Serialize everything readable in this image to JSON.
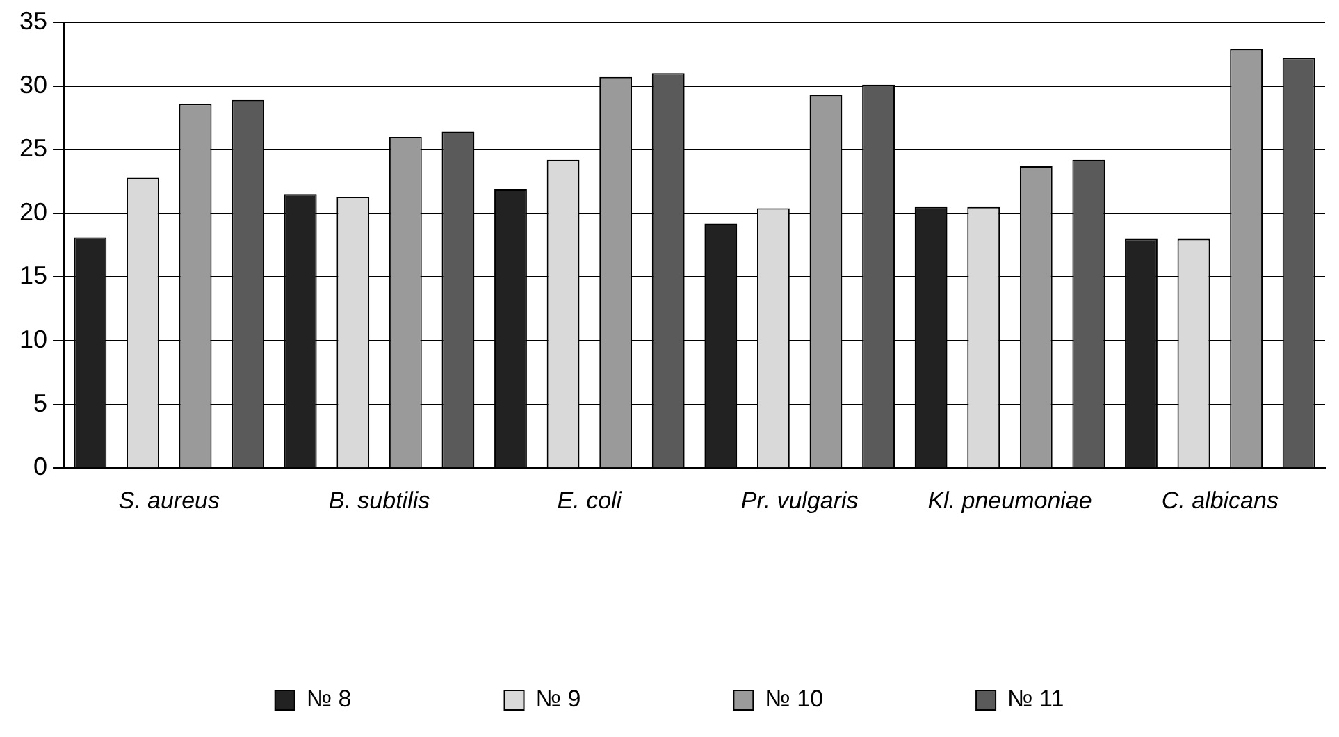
{
  "chart_data": {
    "type": "bar",
    "categories": [
      "S. aureus",
      "B. subtilis",
      "E. coli",
      "Pr. vulgaris",
      "Kl. pneumoniae",
      "C. albicans"
    ],
    "series": [
      {
        "name": "№ 8",
        "color": "#222222",
        "values": [
          18.1,
          21.5,
          21.9,
          19.2,
          20.5,
          18.0
        ]
      },
      {
        "name": "№ 9",
        "color": "#d9d9d9",
        "values": [
          22.8,
          21.3,
          24.2,
          20.4,
          20.5,
          18.0
        ]
      },
      {
        "name": "№ 10",
        "color": "#9a9a9a",
        "values": [
          28.6,
          26.0,
          30.7,
          29.3,
          23.7,
          32.9
        ]
      },
      {
        "name": "№ 11",
        "color": "#5a5a5a",
        "values": [
          28.9,
          26.4,
          31.0,
          30.1,
          24.2,
          32.2
        ]
      }
    ],
    "ylim": [
      0,
      35
    ],
    "yticks": [
      0,
      5,
      10,
      15,
      20,
      25,
      30,
      35
    ],
    "grid": "y",
    "legend": "bottom"
  }
}
